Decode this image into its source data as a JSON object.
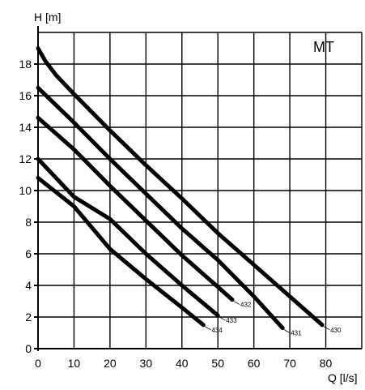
{
  "chart_data": {
    "type": "line",
    "title": "MT",
    "xlabel": "Q [l/s]",
    "ylabel": "H [m]",
    "xlim": [
      0,
      90
    ],
    "ylim": [
      0,
      20
    ],
    "x_ticks": [
      0,
      10,
      20,
      30,
      40,
      50,
      60,
      70,
      80
    ],
    "y_ticks": [
      0,
      2,
      4,
      6,
      8,
      10,
      12,
      14,
      16,
      18
    ],
    "grid": true,
    "series": [
      {
        "name": "430",
        "x": [
          0,
          2,
          5,
          10,
          20,
          30,
          40,
          50,
          60,
          70,
          79
        ],
        "y": [
          19,
          18.2,
          17.3,
          16.1,
          13.8,
          11.6,
          9.5,
          7.3,
          5.3,
          3.3,
          1.5
        ]
      },
      {
        "name": "431",
        "x": [
          0,
          10,
          20,
          30,
          40,
          50,
          60,
          68
        ],
        "y": [
          16.5,
          14.3,
          12.0,
          9.8,
          7.6,
          5.6,
          3.3,
          1.3
        ]
      },
      {
        "name": "432",
        "x": [
          0,
          10,
          20,
          30,
          40,
          50,
          54
        ],
        "y": [
          14.6,
          12.6,
          10.3,
          8.1,
          5.9,
          3.9,
          3.1
        ]
      },
      {
        "name": "433",
        "x": [
          0,
          10,
          20,
          30,
          40,
          50
        ],
        "y": [
          12.0,
          9.6,
          8.2,
          6.0,
          4.0,
          2.1
        ]
      },
      {
        "name": "434",
        "x": [
          0,
          10,
          20,
          30,
          40,
          46
        ],
        "y": [
          10.8,
          9.0,
          6.3,
          4.4,
          2.6,
          1.5
        ]
      }
    ]
  }
}
